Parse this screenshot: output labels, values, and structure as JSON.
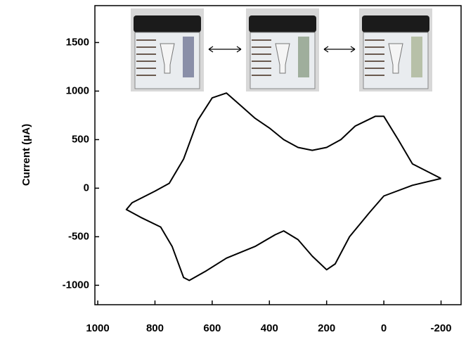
{
  "chart_data": {
    "type": "line",
    "y_label": "Current (μA)",
    "x": [
      -200,
      -100,
      -50,
      0,
      30,
      100,
      150,
      200,
      250,
      300,
      350,
      400,
      450,
      500,
      550,
      600,
      650,
      700,
      750,
      800,
      880,
      900,
      850,
      780,
      740,
      700,
      680,
      620,
      550,
      450,
      380,
      350,
      300,
      250,
      200,
      170,
      120,
      50,
      0,
      -100,
      -200
    ],
    "values": [
      100,
      250,
      500,
      740,
      740,
      640,
      500,
      420,
      390,
      420,
      500,
      620,
      720,
      850,
      980,
      930,
      700,
      300,
      50,
      -30,
      -150,
      -220,
      -300,
      -400,
      -600,
      -920,
      -950,
      -850,
      -720,
      -600,
      -480,
      -440,
      -530,
      -700,
      -840,
      -780,
      -500,
      -250,
      -80,
      30,
      100
    ],
    "color": "#000000",
    "xlim": [
      1010,
      -270
    ],
    "xticks": [
      1000,
      800,
      600,
      400,
      200,
      0,
      -200
    ],
    "ylim": [
      -1200,
      1880
    ],
    "yticks": [
      -1000,
      -500,
      0,
      500,
      1000,
      1500
    ]
  }
}
